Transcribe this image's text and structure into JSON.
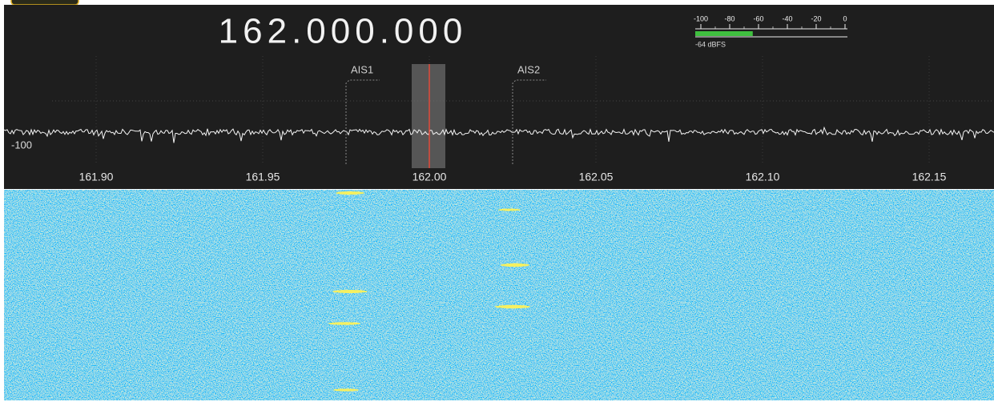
{
  "frequency_display": "162.000.000",
  "level_meter": {
    "ticks": [
      -100,
      -80,
      -60,
      -40,
      -20,
      0
    ],
    "value": -64,
    "value_label": "-64 dBFS"
  },
  "spectrum": {
    "level_label": "-100",
    "x_ticks": [
      {
        "value": 161.9,
        "label": "161.90"
      },
      {
        "value": 161.95,
        "label": "161.95"
      },
      {
        "value": 162.0,
        "label": "162.00"
      },
      {
        "value": 162.05,
        "label": "162.05"
      },
      {
        "value": 162.1,
        "label": "162.10"
      },
      {
        "value": 162.15,
        "label": "162.15"
      }
    ],
    "markers": [
      {
        "label": "AIS1",
        "freq": 161.975
      },
      {
        "label": "AIS2",
        "freq": 162.025
      }
    ]
  }
}
